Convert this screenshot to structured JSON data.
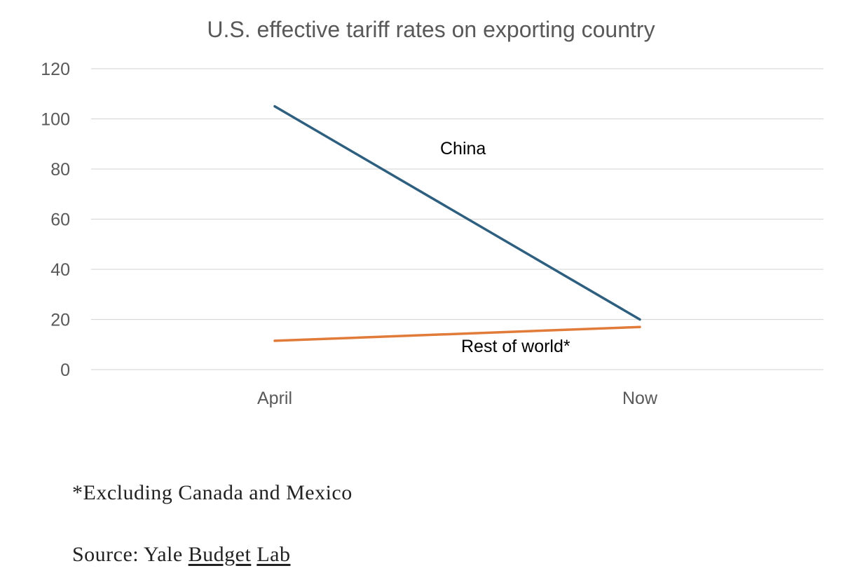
{
  "chart_data": {
    "type": "line",
    "title": "U.S. effective tariff rates on exporting country",
    "categories": [
      "April",
      "Now"
    ],
    "series": [
      {
        "name": "China",
        "label": "China",
        "values": [
          105,
          20
        ],
        "color": "#2E5F7F"
      },
      {
        "name": "Rest of world*",
        "label": "Rest of world*",
        "values": [
          11.5,
          17
        ],
        "color": "#E07B39"
      }
    ],
    "ylim": [
      0,
      120
    ],
    "yticks": [
      0,
      20,
      40,
      60,
      80,
      100,
      120
    ],
    "xlabel": "",
    "ylabel": "",
    "grid": true,
    "legend": "none (inline labels)"
  },
  "footnote": "*Excluding Canada and Mexico",
  "source": {
    "prefix": "Source: Yale ",
    "link1": "Budget",
    "sep": " ",
    "link2": "Lab"
  }
}
